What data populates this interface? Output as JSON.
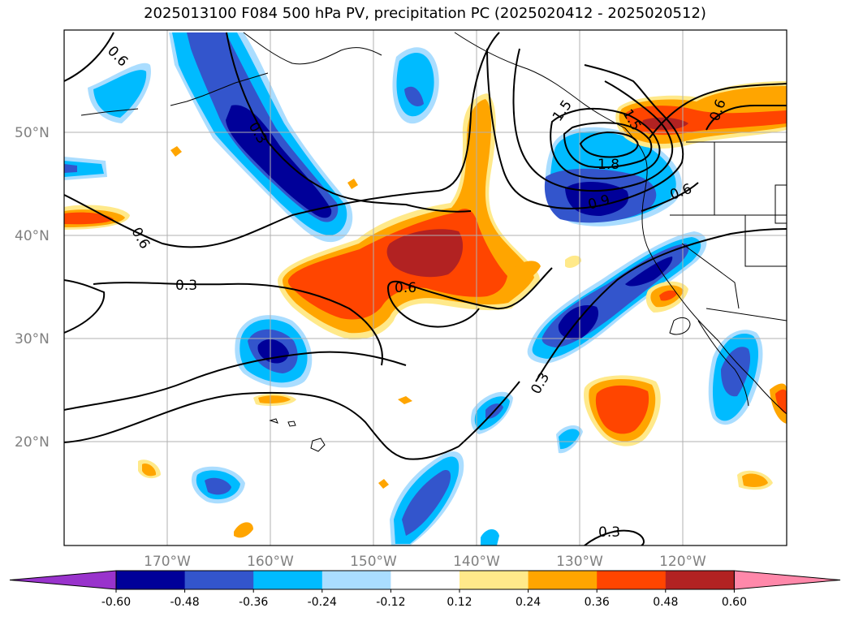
{
  "title": "2025013100 F084 500 hPa PV, precipitation PC (2025020412 - 2025020512)",
  "lat_labels": [
    "50°N",
    "40°N",
    "30°N",
    "20°N"
  ],
  "lon_labels": [
    "170°W",
    "160°W",
    "150°W",
    "140°W",
    "130°W",
    "120°W"
  ],
  "colorbar": {
    "ticks": [
      "-0.60",
      "-0.48",
      "-0.36",
      "-0.24",
      "-0.12",
      "0.12",
      "0.24",
      "0.36",
      "0.48",
      "0.60"
    ],
    "colors": [
      "#9933cc",
      "#000099",
      "#3355cc",
      "#00bbff",
      "#aaddff",
      "#ffffff",
      "#ffe98a",
      "#ffa500",
      "#ff4500",
      "#b22222",
      "#ff88aa"
    ]
  },
  "contour_labels": [
    "0.6",
    "0.3",
    "0.6",
    "0.3",
    "0.6",
    "1.5",
    "1.5",
    "1.8",
    "0.9",
    "0.6",
    "0.6",
    "0.3",
    "0.3"
  ],
  "palette": {
    "dark_blue": "#000099",
    "blue": "#3355cc",
    "light_blue": "#00bbff",
    "pale_blue": "#aaddff",
    "pale_yellow": "#ffe98a",
    "orange": "#ffa500",
    "red_orange": "#ff4500",
    "dark_red": "#b22222",
    "grid": "#b0b0b0",
    "axis_label": "#808080"
  }
}
